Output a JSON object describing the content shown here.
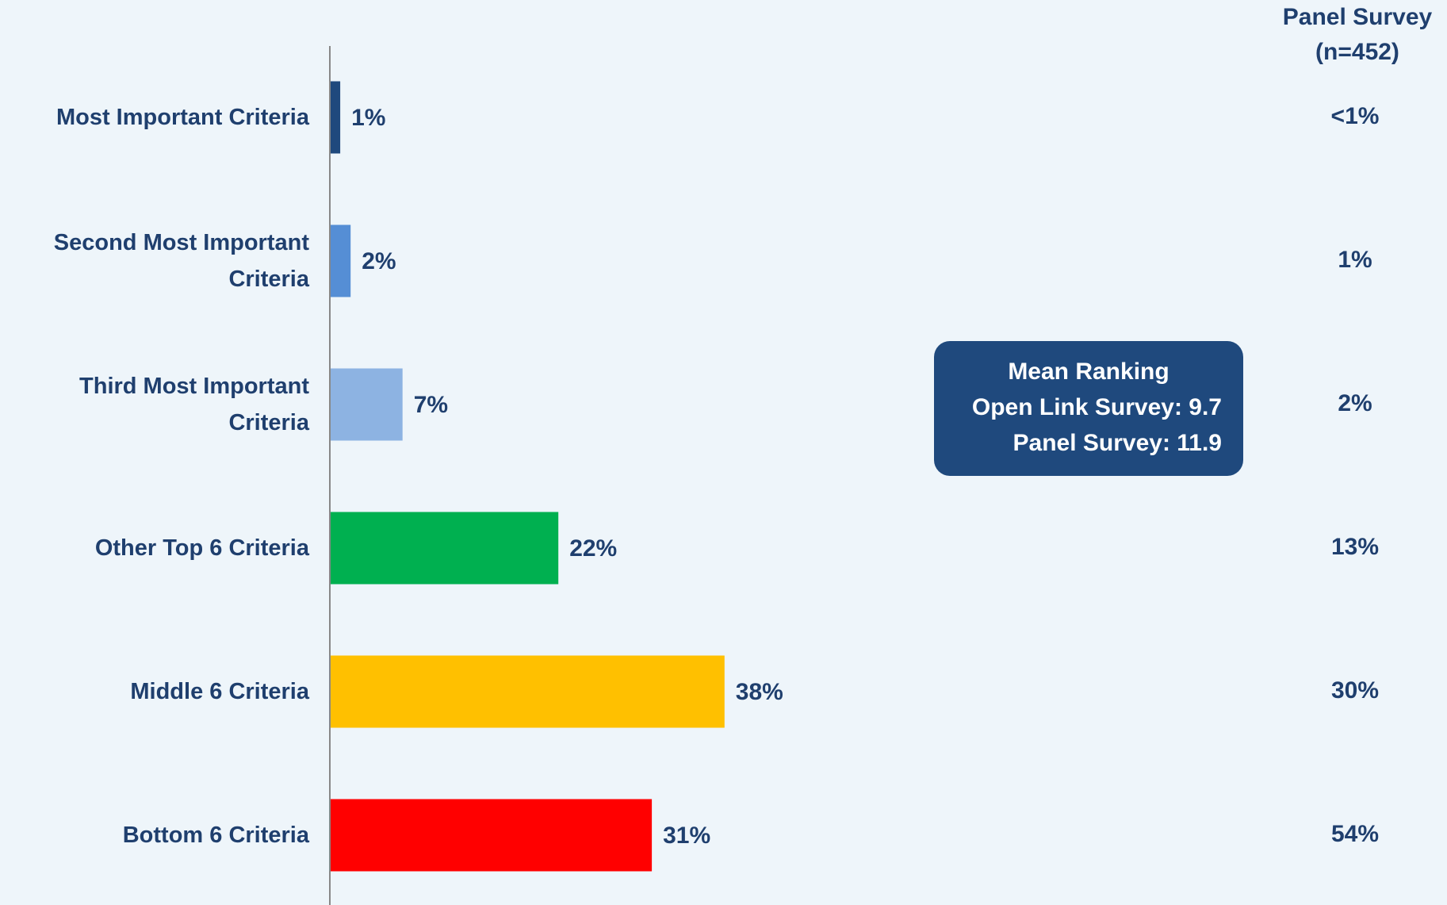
{
  "chart_data": {
    "type": "bar",
    "orientation": "horizontal",
    "categories": [
      "Most Important Criteria",
      "Second Most Important Criteria",
      "Third Most Important Criteria",
      "Other Top 6 Criteria",
      "Middle 6 Criteria",
      "Bottom 6 Criteria"
    ],
    "values": [
      1,
      2,
      7,
      22,
      38,
      31
    ],
    "value_labels": [
      "1%",
      "2%",
      "7%",
      "22%",
      "38%",
      "31%"
    ],
    "colors": [
      "#1f497d",
      "#558ed5",
      "#8db3e2",
      "#00b050",
      "#ffc000",
      "#ff0000"
    ],
    "xlim": [
      0,
      100
    ],
    "panel": {
      "title": [
        "Panel Survey",
        "(n=452)"
      ],
      "value_labels": [
        "<1%",
        "1%",
        "2%",
        "13%",
        "30%",
        "54%"
      ]
    },
    "annotation": [
      "Mean Ranking",
      "Open Link Survey: 9.7",
      "Panel Survey: 11.9"
    ]
  }
}
